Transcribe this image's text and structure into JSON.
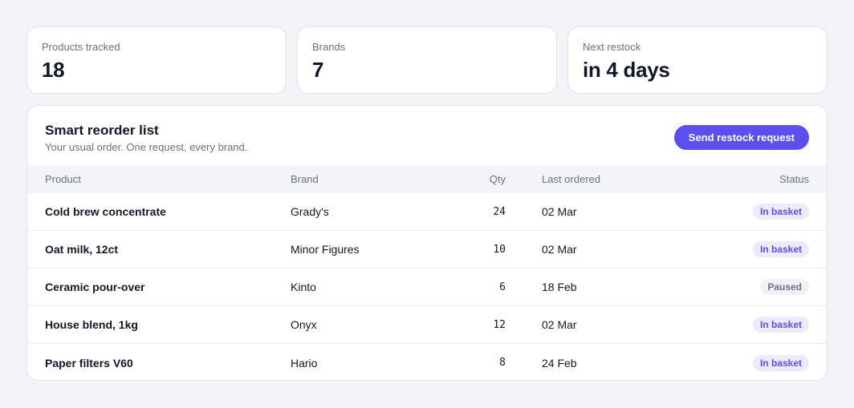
{
  "stats": [
    {
      "label": "Products tracked",
      "value": "18"
    },
    {
      "label": "Brands",
      "value": "7"
    },
    {
      "label": "Next restock",
      "value": "in 4 days"
    }
  ],
  "panel": {
    "title": "Smart reorder list",
    "subtitle": "Your usual order. One request, every brand.",
    "send_button_label": "Send restock request"
  },
  "table": {
    "columns": {
      "product": "Product",
      "brand": "Brand",
      "qty": "Qty",
      "last_ordered": "Last ordered",
      "status": "Status"
    },
    "rows": [
      {
        "product": "Cold brew concentrate",
        "brand": "Grady's",
        "qty": "24",
        "last_ordered": "02 Mar",
        "status": "In basket",
        "status_kind": "active"
      },
      {
        "product": "Oat milk, 12ct",
        "brand": "Minor Figures",
        "qty": "10",
        "last_ordered": "02 Mar",
        "status": "In basket",
        "status_kind": "active"
      },
      {
        "product": "Ceramic pour-over",
        "brand": "Kinto",
        "qty": "6",
        "last_ordered": "18 Feb",
        "status": "Paused",
        "status_kind": "paused"
      },
      {
        "product": "House blend, 1kg",
        "brand": "Onyx",
        "qty": "12",
        "last_ordered": "02 Mar",
        "status": "In basket",
        "status_kind": "active"
      },
      {
        "product": "Paper filters V60",
        "brand": "Hario",
        "qty": "8",
        "last_ordered": "24 Feb",
        "status": "In basket",
        "status_kind": "active"
      }
    ]
  },
  "colors": {
    "accent": "#5b4ff0",
    "background": "#f3f4f8",
    "badge_active_bg": "#ecebfd",
    "badge_paused_bg": "#f0f1f4"
  }
}
